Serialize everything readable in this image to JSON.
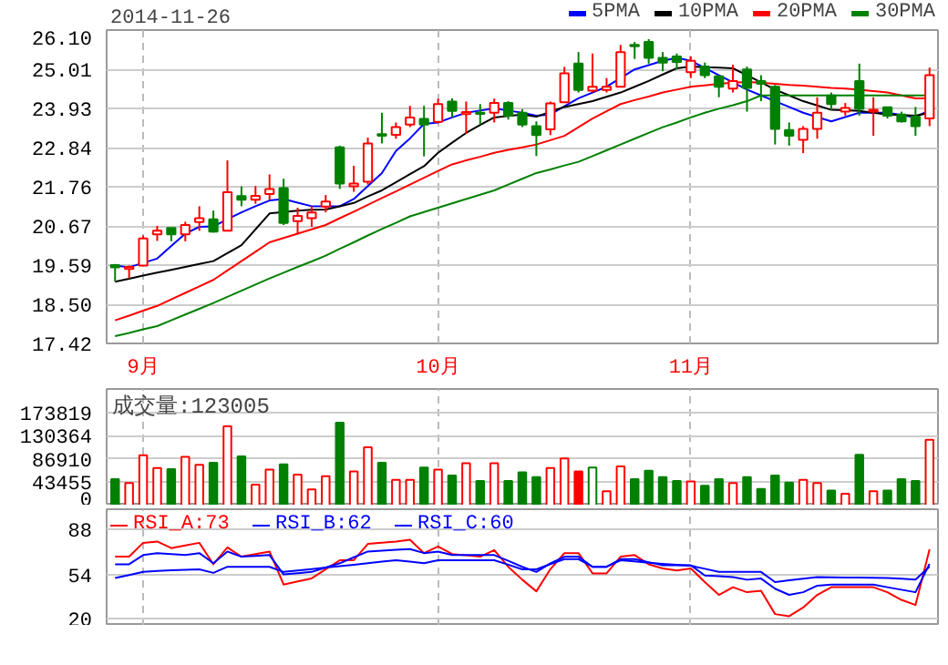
{
  "chart_data": [
    {
      "type": "candlestick",
      "title": "2014-11-26",
      "categories": [
        null,
        null,
        "9月",
        null,
        null,
        null,
        null,
        null,
        null,
        null,
        null,
        null,
        null,
        null,
        null,
        null,
        null,
        null,
        null,
        null,
        null,
        null,
        null,
        "10月",
        null,
        null,
        null,
        null,
        null,
        null,
        null,
        null,
        null,
        null,
        null,
        null,
        null,
        null,
        null,
        null,
        null,
        "11月",
        null,
        null,
        null,
        null,
        null,
        null,
        null,
        null,
        null,
        null,
        null,
        null,
        null,
        null,
        null,
        null,
        null
      ],
      "ohlc": [
        [
          19.59,
          19.62,
          19.13,
          19.53
        ],
        [
          19.48,
          19.58,
          19.22,
          19.54
        ],
        [
          19.58,
          20.41,
          19.58,
          20.33
        ],
        [
          20.44,
          20.68,
          20.26,
          20.54
        ],
        [
          20.62,
          20.62,
          20.25,
          20.44
        ],
        [
          20.44,
          20.79,
          20.25,
          20.7
        ],
        [
          20.78,
          21.22,
          20.54,
          20.89
        ],
        [
          20.86,
          21.1,
          20.49,
          20.52
        ],
        [
          20.54,
          22.49,
          20.54,
          21.61
        ],
        [
          21.5,
          21.77,
          21.22,
          21.4
        ],
        [
          21.4,
          21.78,
          21.29,
          21.51
        ],
        [
          21.56,
          22.1,
          21.4,
          21.7
        ],
        [
          21.72,
          21.98,
          20.7,
          20.76
        ],
        [
          20.81,
          21.18,
          20.44,
          20.95
        ],
        [
          20.89,
          21.22,
          20.65,
          21.05
        ],
        [
          21.21,
          21.53,
          21.05,
          21.35
        ],
        [
          22.85,
          22.9,
          21.7,
          21.85
        ],
        [
          21.77,
          22.34,
          21.62,
          21.85
        ],
        [
          21.9,
          23.12,
          21.82,
          22.96
        ],
        [
          23.22,
          23.81,
          22.96,
          23.17
        ],
        [
          23.2,
          23.54,
          23.09,
          23.41
        ],
        [
          23.48,
          24.0,
          23.41,
          23.68
        ],
        [
          23.64,
          24.0,
          22.6,
          23.48
        ],
        [
          23.56,
          24.2,
          23.52,
          24.05
        ],
        [
          24.12,
          24.21,
          23.68,
          23.86
        ],
        [
          23.77,
          24.12,
          23.22,
          23.83
        ],
        [
          23.81,
          24.05,
          23.48,
          23.78
        ],
        [
          23.81,
          24.2,
          23.54,
          24.08
        ],
        [
          24.08,
          24.13,
          23.62,
          23.73
        ],
        [
          23.81,
          23.91,
          23.41,
          23.48
        ],
        [
          23.44,
          23.57,
          22.61,
          23.19
        ],
        [
          23.35,
          24.12,
          23.19,
          24.07
        ],
        [
          24.1,
          25.08,
          24.1,
          24.9
        ],
        [
          25.17,
          25.49,
          24.37,
          24.44
        ],
        [
          24.42,
          25.45,
          24.37,
          24.53
        ],
        [
          24.44,
          24.77,
          24.37,
          24.53
        ],
        [
          24.53,
          25.69,
          24.53,
          25.49
        ],
        [
          25.69,
          25.77,
          25.3,
          25.65
        ],
        [
          25.77,
          25.85,
          25.17,
          25.33
        ],
        [
          25.33,
          25.49,
          24.96,
          25.2
        ],
        [
          25.37,
          25.45,
          25.01,
          25.22
        ],
        [
          24.93,
          25.37,
          24.77,
          25.25
        ],
        [
          25.09,
          25.2,
          24.77,
          24.85
        ],
        [
          24.82,
          24.85,
          24.24,
          24.53
        ],
        [
          24.48,
          25.14,
          24.37,
          24.69
        ],
        [
          25.01,
          25.09,
          23.84,
          24.5
        ],
        [
          24.69,
          24.85,
          24.13,
          24.61
        ],
        [
          24.53,
          24.58,
          22.93,
          23.36
        ],
        [
          23.33,
          23.54,
          22.9,
          23.17
        ],
        [
          23.06,
          23.44,
          22.69,
          23.36
        ],
        [
          23.36,
          24.24,
          23.09,
          23.81
        ],
        [
          24.29,
          24.37,
          23.89,
          24.05
        ],
        [
          23.84,
          24.08,
          23.73,
          23.94
        ],
        [
          24.69,
          25.17,
          23.73,
          23.92
        ],
        [
          23.84,
          24.24,
          23.17,
          23.89
        ],
        [
          23.96,
          23.97,
          23.65,
          23.73
        ],
        [
          23.76,
          23.84,
          23.54,
          23.57
        ],
        [
          23.7,
          23.97,
          23.17,
          23.44
        ],
        [
          23.65,
          25.06,
          23.44,
          24.85
        ]
      ],
      "colors": [
        "#008000",
        "#ff0000",
        "#ff0000",
        "#ff0000",
        "#008000",
        "#ff0000",
        "#ff0000",
        "#008000",
        "#ff0000",
        "#008000",
        "#ff0000",
        "#ff0000",
        "#008000",
        "#ff0000",
        "#ff0000",
        "#ff0000",
        "#008000",
        "#ff0000",
        "#ff0000",
        "#008000",
        "#ff0000",
        "#ff0000",
        "#008000",
        "#ff0000",
        "#008000",
        "#ff0000",
        "#008000",
        "#ff0000",
        "#008000",
        "#008000",
        "#008000",
        "#ff0000",
        "#ff0000",
        "#008000",
        "#ff0000",
        "#ff0000",
        "#ff0000",
        "#008000",
        "#008000",
        "#008000",
        "#008000",
        "#ff0000",
        "#008000",
        "#008000",
        "#ff0000",
        "#008000",
        "#008000",
        "#008000",
        "#008000",
        "#ff0000",
        "#ff0000",
        "#008000",
        "#ff0000",
        "#008000",
        "#ff0000",
        "#008000",
        "#008000",
        "#008000",
        "#ff0000"
      ],
      "series": [
        {
          "name": "5PMA",
          "type": "line",
          "color": "#0000ff",
          "values": [
            19.58,
            19.53,
            19.65,
            19.77,
            20.12,
            20.46,
            20.65,
            20.66,
            20.86,
            21.05,
            21.22,
            21.38,
            21.42,
            21.32,
            21.22,
            21.22,
            21.22,
            21.42,
            21.78,
            22.14,
            22.75,
            23.1,
            23.5,
            23.54,
            23.68,
            23.81,
            23.87,
            23.93,
            23.87,
            23.81,
            23.73,
            23.76,
            23.99,
            24.21,
            24.37,
            24.53,
            24.77,
            25.01,
            25.13,
            25.25,
            25.33,
            25.25,
            25.05,
            24.85,
            24.65,
            24.45,
            24.29,
            24.13,
            23.97,
            23.81,
            23.69,
            23.57,
            23.69,
            23.81,
            23.81,
            23.81,
            23.75,
            23.68,
            23.89
          ]
        },
        {
          "name": "10PMA",
          "type": "line",
          "color": "#000000",
          "values": [
            19.13,
            19.21,
            19.3,
            19.38,
            19.46,
            19.54,
            19.62,
            19.7,
            19.92,
            20.14,
            20.58,
            21.02,
            21.06,
            21.1,
            21.12,
            21.13,
            21.22,
            21.31,
            21.49,
            21.66,
            21.88,
            22.11,
            22.33,
            22.7,
            22.98,
            23.25,
            23.47,
            23.68,
            23.72,
            23.76,
            23.7,
            23.84,
            23.97,
            24.05,
            24.13,
            24.25,
            24.37,
            24.53,
            24.69,
            24.87,
            25.04,
            25.09,
            25.07,
            25.06,
            25.04,
            24.85,
            24.65,
            24.45,
            24.29,
            24.13,
            24.01,
            23.89,
            23.88,
            23.86,
            23.81,
            23.76,
            23.75,
            23.73,
            23.81
          ]
        },
        {
          "name": "20PMA",
          "type": "line",
          "color": "#ff0000",
          "values": [
            18.06,
            18.19,
            18.33,
            18.46,
            18.64,
            18.82,
            19.0,
            19.18,
            19.44,
            19.7,
            19.96,
            20.22,
            20.34,
            20.46,
            20.58,
            20.7,
            20.89,
            21.07,
            21.26,
            21.45,
            21.63,
            21.82,
            22.01,
            22.2,
            22.38,
            22.49,
            22.59,
            22.7,
            22.78,
            22.85,
            22.93,
            23.05,
            23.17,
            23.41,
            23.65,
            23.85,
            24.05,
            24.16,
            24.26,
            24.37,
            24.45,
            24.53,
            24.57,
            24.61,
            24.64,
            24.66,
            24.64,
            24.61,
            24.58,
            24.56,
            24.53,
            24.5,
            24.48,
            24.45,
            24.41,
            24.37,
            24.29,
            24.21,
            24.21
          ]
        },
        {
          "name": "30PMA",
          "type": "line",
          "color": "#008000",
          "values": [
            17.62,
            17.71,
            17.81,
            17.9,
            18.06,
            18.22,
            18.38,
            18.54,
            18.71,
            18.88,
            19.05,
            19.22,
            19.38,
            19.54,
            19.69,
            19.85,
            20.04,
            20.22,
            20.41,
            20.59,
            20.76,
            20.94,
            21.06,
            21.18,
            21.3,
            21.42,
            21.54,
            21.66,
            21.82,
            21.98,
            22.14,
            22.24,
            22.35,
            22.45,
            22.61,
            22.77,
            22.93,
            23.09,
            23.25,
            23.41,
            23.54,
            23.68,
            23.81,
            23.92,
            24.02,
            24.13,
            24.29,
            24.29,
            24.29,
            24.29,
            24.29,
            24.29,
            24.29,
            24.29,
            24.29,
            24.29,
            24.29,
            24.29,
            24.29
          ]
        }
      ],
      "ylim": [
        17.42,
        26.1
      ],
      "yticks": [
        17.42,
        {
          "value": 18.5,
          "label": "18.50"
        },
        19.59,
        20.67,
        21.76,
        22.84,
        23.93,
        25.01,
        {
          "value": 26.1,
          "label": "26.10"
        }
      ],
      "grid": true,
      "legend": "top right"
    },
    {
      "type": "bar",
      "annotations": [
        "成交量:123005"
      ],
      "categories": [
        null,
        null,
        null,
        null,
        null,
        null,
        null,
        null,
        null,
        null,
        null,
        null,
        null,
        null,
        null,
        null,
        null,
        null,
        null,
        null,
        null,
        null,
        null,
        null,
        null,
        null,
        null,
        null,
        null,
        null,
        null,
        null,
        null,
        null,
        null,
        null,
        null,
        null,
        null,
        null,
        null,
        null,
        null,
        null,
        null,
        null,
        null,
        null,
        null,
        null,
        null,
        null,
        null,
        null,
        null,
        null,
        null,
        null,
        null
      ],
      "values": [
        49500,
        42000,
        94000,
        70000,
        68000,
        91000,
        76000,
        80000,
        148000,
        92000,
        39000,
        67000,
        77000,
        58000,
        30000,
        55000,
        155000,
        64000,
        109000,
        80000,
        48000,
        48000,
        71000,
        67000,
        56000,
        79000,
        46000,
        79000,
        46000,
        62000,
        53000,
        70000,
        88000,
        64000,
        71000,
        27000,
        73000,
        49500,
        65000,
        53000,
        46000,
        45000,
        37000,
        49500,
        42000,
        53000,
        31000,
        56000,
        43000,
        48000,
        42000,
        28000,
        22000,
        95000,
        27000,
        28000,
        49500,
        46000,
        123005
      ],
      "colors": [
        "#008000",
        "#ff0000",
        "#ff0000",
        "#ff0000",
        "#008000",
        "#ff0000",
        "#ff0000",
        "#008000",
        "#ff0000",
        "#008000",
        "#ff0000",
        "#ff0000",
        "#008000",
        "#ff0000",
        "#ff0000",
        "#ff0000",
        "#008000",
        "#ff0000",
        "#ff0000",
        "#008000",
        "#ff0000",
        "#ff0000",
        "#008000",
        "#ff0000",
        "#008000",
        "#ff0000",
        "#008000",
        "#ff0000",
        "#008000",
        "#008000",
        "#008000",
        "#ff0000",
        "#ff0000",
        "#ff0000",
        "#008000",
        "#ff0000",
        "#ff0000",
        "#008000",
        "#008000",
        "#008000",
        "#008000",
        "#ff0000",
        "#008000",
        "#008000",
        "#ff0000",
        "#008000",
        "#008000",
        "#008000",
        "#008000",
        "#ff0000",
        "#ff0000",
        "#008000",
        "#ff0000",
        "#008000",
        "#ff0000",
        "#008000",
        "#008000",
        "#008000",
        "#ff0000"
      ],
      "ylim": [
        0,
        217800
      ],
      "yticks": [
        0,
        43455,
        86910,
        130364,
        173819
      ],
      "grid": true,
      "tick_labels": "y"
    },
    {
      "type": "line",
      "categories": [
        null,
        null,
        null,
        null,
        null,
        null,
        null,
        null,
        null,
        null,
        null,
        null,
        null,
        null,
        null,
        null,
        null,
        null,
        null,
        null,
        null,
        null,
        null,
        null,
        null,
        null,
        null,
        null,
        null,
        null,
        null,
        null,
        null,
        null,
        null,
        null,
        null,
        null,
        null,
        null,
        null,
        null,
        null,
        null,
        null,
        null,
        null,
        null,
        null,
        null,
        null,
        null,
        null,
        null,
        null,
        null,
        null,
        null,
        null
      ],
      "series": [
        {
          "name": "RSI_A:73",
          "color": "#ff0000",
          "values": [
            67.5,
            67.5,
            78,
            79,
            74,
            76,
            78,
            61.7,
            74.5,
            67.5,
            69.5,
            71.4,
            46.3,
            48.7,
            51,
            57.9,
            64.8,
            64.8,
            77.2,
            78.1,
            79,
            80.3,
            70.2,
            75.3,
            69.5,
            68.5,
            67.5,
            72.5,
            59.8,
            50,
            41.2,
            58,
            70.2,
            70.2,
            54.8,
            54.8,
            67.5,
            68.7,
            61.7,
            58.6,
            57,
            58.6,
            48.2,
            38.5,
            44.3,
            40.5,
            41.6,
            23.9,
            22.3,
            28.9,
            38.5,
            44.3,
            44.3,
            44.3,
            44.3,
            40.5,
            34.7,
            30.8,
            73
          ]
        },
        {
          "name": "RSI_B:62",
          "color": "#0000ff",
          "values": [
            61.7,
            61.7,
            68.7,
            70.2,
            69.5,
            68.7,
            70.2,
            62.5,
            71.4,
            67.5,
            68.1,
            68.7,
            54,
            55.0,
            55.9,
            59.2,
            62.5,
            67.0,
            71.4,
            72.0,
            72.7,
            73.3,
            70.2,
            71.4,
            68.7,
            68.7,
            68.7,
            68.7,
            64.3,
            59.8,
            55.9,
            62.5,
            67.5,
            67.5,
            59.8,
            59.8,
            65.6,
            65.6,
            63.3,
            61,
            61,
            61,
            53.2,
            52.6,
            52,
            50,
            50.9,
            43.2,
            38.5,
            40.5,
            45.5,
            46.3,
            46.3,
            46.3,
            46.3,
            44.3,
            42.4,
            40.5,
            62
          ]
        },
        {
          "name": "RSI_C:60",
          "color": "#0000ff",
          "values": [
            51.3,
            53.6,
            55.9,
            56.7,
            57.1,
            57.5,
            57.9,
            55.2,
            59.8,
            59.8,
            59.8,
            59.8,
            55.9,
            57.0,
            58.1,
            59.2,
            60.3,
            61.4,
            62.5,
            63.7,
            64.8,
            63.7,
            62.5,
            64.8,
            64.8,
            64.8,
            64.8,
            64.8,
            61.4,
            57.9,
            57.9,
            61.8,
            65.6,
            65.6,
            59.8,
            59.8,
            64.8,
            63.9,
            62.9,
            62.1,
            61.4,
            60.6,
            58.3,
            55.9,
            55.9,
            55.9,
            55.9,
            48.2,
            49.5,
            50.7,
            52,
            51.9,
            51.7,
            51.6,
            51.4,
            51.3,
            50.7,
            50.1,
            60
          ]
        }
      ],
      "ylim": [
        15,
        103.5
      ],
      "yticks": [
        20,
        54,
        88
      ],
      "grid": true,
      "tick_labels": "y",
      "legend": "top left"
    }
  ]
}
